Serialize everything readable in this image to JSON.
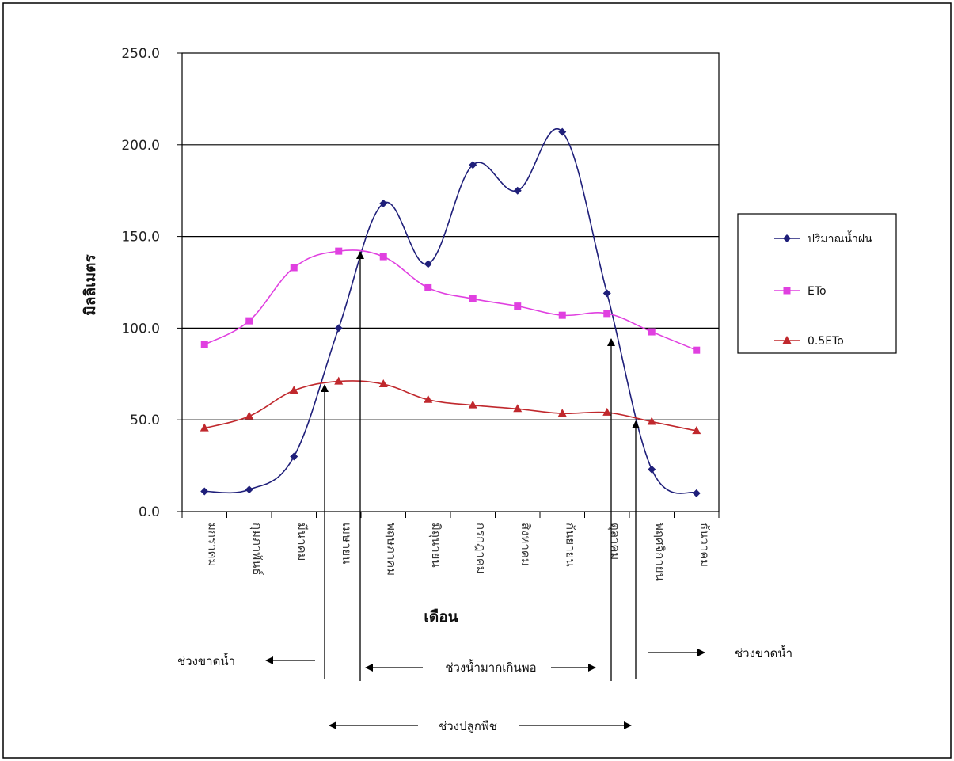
{
  "chart_data": {
    "type": "line",
    "xlabel": "เดือน",
    "ylabel": "มิลลิเมตร",
    "categories": [
      "มกราคม",
      "กุมภาพันธ์",
      "มีนาคม",
      "เมษายน",
      "พฤษภาคม",
      "มิถุนายน",
      "กรกฎาคม",
      "สิงหาคม",
      "กันยายน",
      "ตุลาคม",
      "พฤศจิกายน",
      "ธันวาคม"
    ],
    "ylim": [
      0,
      250
    ],
    "yticks": [
      "0.0",
      "50.0",
      "100.0",
      "150.0",
      "200.0",
      "250.0"
    ],
    "ytick_values": [
      0,
      50,
      100,
      150,
      200,
      250
    ],
    "grid": "horizontal",
    "legend_position": "right",
    "series": [
      {
        "name": "ปริมาณน้ำฝน",
        "color": "#1f1f7a",
        "marker": "diamond",
        "values": [
          11,
          12,
          30,
          100,
          168,
          135,
          189,
          175,
          207,
          119,
          23,
          10
        ]
      },
      {
        "name": "ETo",
        "color": "#e040e0",
        "marker": "square",
        "values": [
          91,
          104,
          133,
          142,
          139,
          122,
          116,
          112,
          107,
          108,
          98,
          88
        ]
      },
      {
        "name": "0.5ETo",
        "color": "#c0282d",
        "marker": "triangle",
        "values": [
          45.5,
          52,
          66,
          71,
          69.5,
          61,
          58,
          56,
          53.5,
          54,
          49,
          44
        ]
      }
    ],
    "annotations": [
      {
        "text": "ช่วงขาดน้ำ",
        "role": "left-deficit"
      },
      {
        "text": "ช่วงน้ำมากเกินพอ",
        "role": "surplus"
      },
      {
        "text": "ช่วงขาดน้ำ",
        "role": "right-deficit"
      },
      {
        "text": "ช่วงปลูกพืช",
        "role": "growing"
      }
    ],
    "markers_at_month_index": [
      2.62,
      3.48,
      8.97,
      9.62
    ]
  }
}
